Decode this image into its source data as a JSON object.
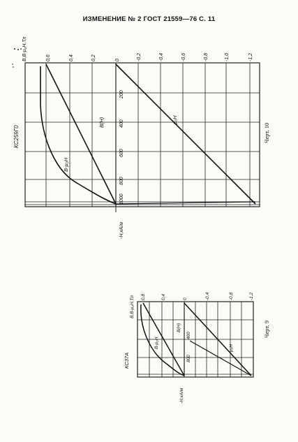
{
  "header": {
    "text": "ИЗМЕНЕНИЕ № 2 ГОСТ 21559—76 С. 11"
  },
  "top_chart": {
    "side_label": "КС259Г0",
    "y_axis_label": "B,B-μ₀H,Тл",
    "left_ticks": [
      "0,6",
      "0,4",
      "0,2",
      "0"
    ],
    "right_ticks": [
      "-0,2",
      "-0,4",
      "-0,6",
      "-0,8",
      "-1,0",
      "-1,2"
    ],
    "h_ticks": [
      "200",
      "400",
      "600",
      "800",
      "1000"
    ],
    "h_axis_label": "-H,кА/м",
    "curve_b_h": "B(H)",
    "curve_b_mu": "B-μ₀H",
    "curve_mu": "μ₀H",
    "caption": "Черт. 10"
  },
  "bottom_chart": {
    "side_label": "КС37А",
    "y_axis_label": "B,B-μ₀H,Тл",
    "left_ticks": [
      "0,8",
      "0,4",
      "0"
    ],
    "right_ticks": [
      "-0,4",
      "-0,8",
      "-1,2"
    ],
    "h_ticks": [
      "400",
      "800"
    ],
    "h_axis_label": "-H,кА/м",
    "curve_b_h": "B(H)",
    "curve_b_mu": "B-μ₀H",
    "curve_mu": "μ₀H",
    "caption": "Черт. 9"
  },
  "chart_data": [
    {
      "type": "line",
      "x": [
        0,
        200,
        400,
        600,
        800,
        1000
      ],
      "series": [
        {
          "name": "B(H)",
          "values": [
            0.66,
            0.4,
            0.15,
            -0.1,
            -0.36,
            -0.62
          ]
        },
        {
          "name": "B-μ₀H",
          "values": [
            0.66,
            0.65,
            0.6,
            0.5,
            0.35,
            0.1
          ]
        },
        {
          "name": "μ₀H",
          "values": [
            0.0,
            -0.25,
            -0.5,
            -0.75,
            -1.0,
            -1.26
          ]
        }
      ],
      "xlabel": "-H,кА/м",
      "ylabel": "B,B-μ₀H,Тл",
      "ylim": [
        -1.3,
        0.7
      ]
    },
    {
      "type": "line",
      "x": [
        0,
        400,
        800
      ],
      "series": [
        {
          "name": "B(H)",
          "values": [
            0.95,
            0.4,
            -0.1
          ]
        },
        {
          "name": "B-μ₀H",
          "values": [
            0.95,
            0.9,
            0.6
          ]
        },
        {
          "name": "μ₀H",
          "values": [
            0.0,
            -0.5,
            -1.0
          ]
        }
      ],
      "xlabel": "-H,кА/м",
      "ylabel": "B,B-μ₀H,Тл",
      "ylim": [
        -1.3,
        1.0
      ]
    }
  ]
}
